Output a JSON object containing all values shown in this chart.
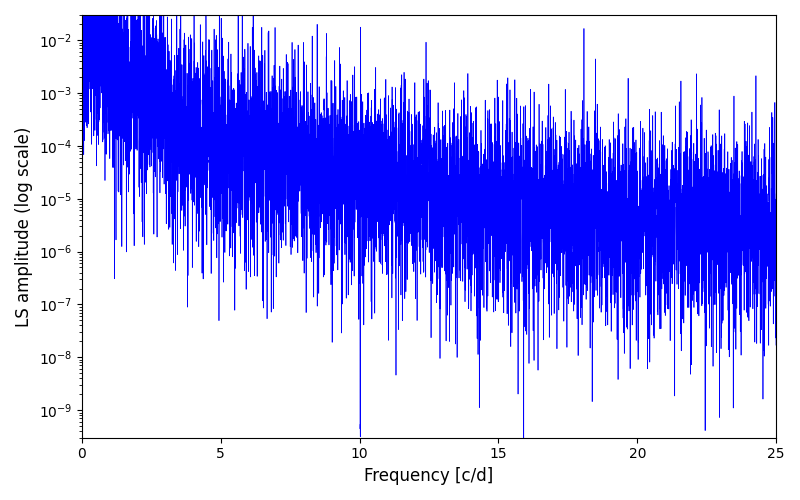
{
  "xlabel": "Frequency [c/d]",
  "ylabel": "LS amplitude (log scale)",
  "line_color": "#0000ff",
  "line_width": 0.5,
  "xlim": [
    0,
    25
  ],
  "ylim": [
    3e-10,
    0.03
  ],
  "freq_max": 25.0,
  "n_points": 8000,
  "seed": 7,
  "background_color": "#ffffff",
  "figsize": [
    8.0,
    5.0
  ],
  "dpi": 100
}
